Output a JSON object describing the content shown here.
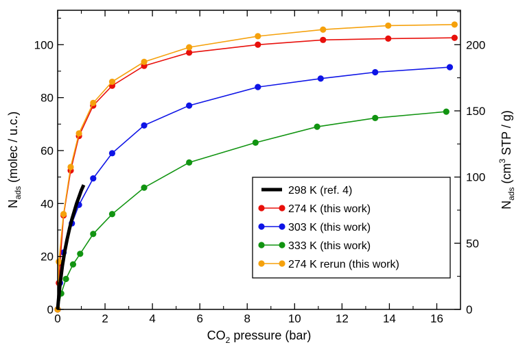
{
  "chart_data": {
    "type": "line",
    "xlabel": "CO",
    "xlabel_sub": "2",
    "xlabel_rest": " pressure (bar)",
    "ylabel": "N",
    "ylabel_sub": "ads",
    "ylabel_rest": " (molec / u.c.)",
    "y2label": "N",
    "y2label_sub": "ads",
    "y2label_pre": " (cm",
    "y2label_sup": "3",
    "y2label_rest": " STP / g)",
    "xlim": [
      0,
      17
    ],
    "ylim": [
      0,
      113
    ],
    "y2lim": [
      0,
      226
    ],
    "xticks": [
      0,
      2,
      4,
      6,
      8,
      10,
      12,
      14,
      16
    ],
    "yticks": [
      0,
      20,
      40,
      60,
      80,
      100
    ],
    "y2ticks": [
      0,
      50,
      100,
      150,
      200
    ],
    "grid": false,
    "legend_position": "bottom-right",
    "series": [
      {
        "name": "298 K (ref. 4)",
        "color": "#000000",
        "style": "thick-line",
        "x": [
          0.0,
          0.05,
          0.1,
          0.2,
          0.3,
          0.4,
          0.5,
          0.6,
          0.7,
          0.8,
          0.9,
          1.0,
          1.1
        ],
        "y": [
          0.0,
          5.0,
          9.5,
          16.5,
          22.0,
          26.5,
          30.5,
          34.0,
          37.0,
          40.0,
          42.5,
          45.0,
          47.0
        ]
      },
      {
        "name": "274 K (this work)",
        "color": "#e8100b",
        "style": "line-marker",
        "x": [
          0.0,
          0.05,
          0.1,
          0.25,
          0.55,
          0.9,
          1.5,
          2.3,
          3.65,
          5.55,
          8.45,
          11.2,
          13.95,
          16.75
        ],
        "y": [
          0.0,
          10.0,
          17.5,
          35.5,
          52.5,
          65.5,
          77.0,
          84.5,
          92.0,
          97.0,
          100.0,
          101.8,
          102.3,
          102.6
        ]
      },
      {
        "name": "303 K (this work)",
        "color": "#0e14e6",
        "style": "line-marker",
        "x": [
          0.0,
          0.1,
          0.25,
          0.6,
          0.9,
          1.5,
          2.3,
          3.65,
          5.55,
          8.45,
          11.1,
          13.4,
          16.55
        ],
        "y": [
          0.0,
          10.0,
          21.5,
          32.5,
          39.5,
          49.5,
          59.0,
          69.5,
          77.0,
          84.0,
          87.2,
          89.6,
          91.5
        ]
      },
      {
        "name": "333 K (this work)",
        "color": "#119411",
        "style": "line-marker",
        "x": [
          0.0,
          0.15,
          0.35,
          0.65,
          0.95,
          1.5,
          2.3,
          3.65,
          5.55,
          8.35,
          10.95,
          13.4,
          16.4
        ],
        "y": [
          0.0,
          6.0,
          11.5,
          17.0,
          21.0,
          28.5,
          36.0,
          46.0,
          55.5,
          63.0,
          69.0,
          72.3,
          74.7
        ]
      },
      {
        "name": "274 K rerun (this work)",
        "color": "#f5a10c",
        "style": "line-marker",
        "x": [
          0.0,
          0.05,
          0.25,
          0.55,
          0.9,
          1.5,
          2.3,
          3.65,
          5.55,
          8.45,
          11.2,
          13.95,
          16.75
        ],
        "y": [
          0.0,
          18.0,
          36.0,
          53.8,
          66.5,
          78.0,
          86.0,
          93.5,
          99.0,
          103.2,
          105.7,
          107.2,
          107.6
        ]
      }
    ]
  }
}
